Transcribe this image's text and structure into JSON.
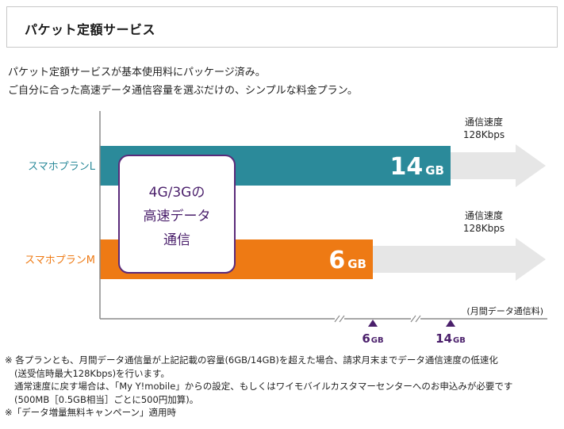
{
  "header": {
    "title": "パケット定額サービス"
  },
  "intro": {
    "line1": "パケット定額サービスが基本使用料にパッケージ済み。",
    "line2": "ご自分に合った高速データ通信容量を選ぶだけの、シンプルな料金プラン。"
  },
  "chart_data": {
    "type": "bar",
    "orientation": "horizontal",
    "categories": [
      "スマホプランL",
      "スマホプランM"
    ],
    "values": [
      14,
      6
    ],
    "value_unit": "GB",
    "value_labels": [
      "14",
      "6"
    ],
    "xlabel": "(月間データ通信料)",
    "x_ticks": [
      {
        "value": 6,
        "number": "6",
        "unit": "GB"
      },
      {
        "value": 14,
        "number": "14",
        "unit": "GB"
      }
    ],
    "box_label": [
      "4G/3Gの",
      "高速データ",
      "通信"
    ],
    "arrow_labels": [
      [
        "通信速度",
        "128Kbps"
      ],
      [
        "通信速度",
        "128Kbps"
      ]
    ],
    "colors": {
      "plan_l": "#2b8a9a",
      "plan_m": "#ee7a14",
      "box_border": "#5a2a7a",
      "box_text": "#4a1f6b",
      "tick_marker": "#4a1f6b",
      "arrow": "#e6e6e6",
      "axis": "#8a8a8a"
    }
  },
  "notes": {
    "line1": "※ 各プランとも、月間データ通信量が上記記載の容量(6GB/14GB)を超えた場合、請求月末までデータ通信速度の低速化",
    "line2": "(送受信時最大128Kbps)を行います。",
    "line3": "通常速度に戻す場合は、「My Y!mobile」からの設定、もしくはワイモバイルカスタマーセンターへのお申込みが必要です",
    "line4": "(500MB［0.5GB相当］ごとに500円加算)。",
    "line5": "※「データ増量無料キャンペーン」適用時"
  }
}
